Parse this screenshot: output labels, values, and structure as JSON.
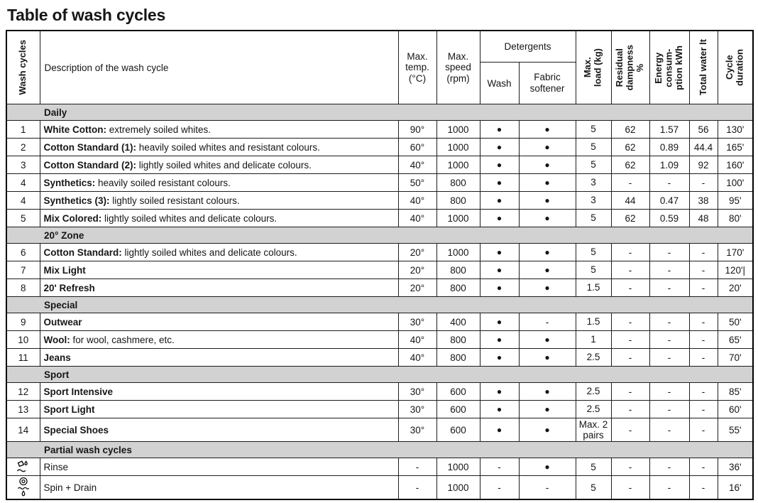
{
  "title": "Table of wash cycles",
  "table": {
    "headers": {
      "wash_cycles": "Wash cycles",
      "description": "Description of the wash cycle",
      "max_temp": "Max.\ntemp.\n(°C)",
      "max_speed": "Max.\nspeed\n(rpm)",
      "detergents": "Detergents",
      "wash": "Wash",
      "fabric_softener": "Fabric\nsoftener",
      "max_load": "Max.\nload (kg)",
      "residual_dampness": "Residual\ndampness\n%",
      "energy": "Energy\nconsum-\nption kWh",
      "total_water": "Total water lt",
      "cycle_duration": "Cycle\nduration"
    },
    "sections": [
      {
        "label": "Daily",
        "rows": [
          {
            "num": "1",
            "name": "White Cotton:",
            "desc": " extremely soiled whites.",
            "temp": "90°",
            "speed": "1000",
            "wash": "●",
            "softener": "●",
            "load": "5",
            "dampness": "62",
            "energy": "1.57",
            "water": "56",
            "duration": "130'"
          },
          {
            "num": "2",
            "name": "Cotton Standard (1):",
            "desc": " heavily soiled whites and resistant colours.",
            "temp": "60°",
            "speed": "1000",
            "wash": "●",
            "softener": "●",
            "load": "5",
            "dampness": "62",
            "energy": "0.89",
            "water": "44.4",
            "duration": "165'"
          },
          {
            "num": "3",
            "name": "Cotton Standard (2):",
            "desc": " lightly soiled whites and delicate colours.",
            "temp": "40°",
            "speed": "1000",
            "wash": "●",
            "softener": "●",
            "load": "5",
            "dampness": "62",
            "energy": "1.09",
            "water": "92",
            "duration": "160'"
          },
          {
            "num": "4",
            "name": "Synthetics:",
            "desc": " heavily soiled resistant colours.",
            "temp": "50°",
            "speed": "800",
            "wash": "●",
            "softener": "●",
            "load": "3",
            "dampness": "-",
            "energy": "-",
            "water": "-",
            "duration": "100'"
          },
          {
            "num": "4",
            "name": "Synthetics (3):",
            "desc": " lightly soiled resistant colours.",
            "temp": "40°",
            "speed": "800",
            "wash": "●",
            "softener": "●",
            "load": "3",
            "dampness": "44",
            "energy": "0.47",
            "water": "38",
            "duration": "95'"
          },
          {
            "num": "5",
            "name": "Mix Colored:",
            "desc": " lightly soiled whites and delicate colours.",
            "temp": "40°",
            "speed": "1000",
            "wash": "●",
            "softener": "●",
            "load": "5",
            "dampness": "62",
            "energy": "0.59",
            "water": "48",
            "duration": "80'"
          }
        ]
      },
      {
        "label": "20° Zone",
        "rows": [
          {
            "num": "6",
            "name": "Cotton Standard:",
            "desc": " lightly soiled whites and delicate colours.",
            "temp": "20°",
            "speed": "1000",
            "wash": "●",
            "softener": "●",
            "load": "5",
            "dampness": "-",
            "energy": "-",
            "water": "-",
            "duration": "170'"
          },
          {
            "num": "7",
            "name": "Mix Light",
            "desc": "",
            "temp": "20°",
            "speed": "800",
            "wash": "●",
            "softener": "●",
            "load": "5",
            "dampness": "-",
            "energy": "-",
            "water": "-",
            "duration": "120'|"
          },
          {
            "num": "8",
            "name": "20' Refresh",
            "desc": "",
            "temp": "20°",
            "speed": "800",
            "wash": "●",
            "softener": "●",
            "load": "1.5",
            "dampness": "-",
            "energy": "-",
            "water": "-",
            "duration": "20'"
          }
        ]
      },
      {
        "label": "Special",
        "rows": [
          {
            "num": "9",
            "name": "Outwear",
            "desc": "",
            "temp": "30°",
            "speed": "400",
            "wash": "●",
            "softener": "-",
            "load": "1.5",
            "dampness": "-",
            "energy": "-",
            "water": "-",
            "duration": "50'"
          },
          {
            "num": "10",
            "name": "Wool:",
            "desc": " for wool, cashmere, etc.",
            "temp": "40°",
            "speed": "800",
            "wash": "●",
            "softener": "●",
            "load": "1",
            "dampness": "-",
            "energy": "-",
            "water": "-",
            "duration": "65'"
          },
          {
            "num": "11",
            "name": "Jeans",
            "desc": "",
            "temp": "40°",
            "speed": "800",
            "wash": "●",
            "softener": "●",
            "load": "2.5",
            "dampness": "-",
            "energy": "-",
            "water": "-",
            "duration": "70'"
          }
        ]
      },
      {
        "label": "Sport",
        "rows": [
          {
            "num": "12",
            "name": "Sport Intensive",
            "desc": "",
            "temp": "30°",
            "speed": "600",
            "wash": "●",
            "softener": "●",
            "load": "2.5",
            "dampness": "-",
            "energy": "-",
            "water": "-",
            "duration": "85'"
          },
          {
            "num": "13",
            "name": "Sport Light",
            "desc": "",
            "temp": "30°",
            "speed": "600",
            "wash": "●",
            "softener": "●",
            "load": "2.5",
            "dampness": "-",
            "energy": "-",
            "water": "-",
            "duration": "60'"
          },
          {
            "num": "14",
            "name": "Special Shoes",
            "desc": "",
            "temp": "30°",
            "speed": "600",
            "wash": "●",
            "softener": "●",
            "load": "Max. 2\npairs",
            "dampness": "-",
            "energy": "-",
            "water": "-",
            "duration": "55'"
          }
        ]
      },
      {
        "label": "Partial wash cycles",
        "rows": [
          {
            "icon": "rinse-icon",
            "name": "Rinse",
            "desc": "",
            "temp": "-",
            "speed": "1000",
            "wash": "-",
            "softener": "●",
            "load": "5",
            "dampness": "-",
            "energy": "-",
            "water": "-",
            "duration": "36'"
          },
          {
            "icon": "spin-drain-icon",
            "name": "Spin + Drain",
            "desc": "",
            "temp": "-",
            "speed": "1000",
            "wash": "-",
            "softener": "-",
            "load": "5",
            "dampness": "-",
            "energy": "-",
            "water": "-",
            "duration": "16'"
          }
        ]
      }
    ]
  },
  "colors": {
    "section_band": "#d2d2d2",
    "border": "#1c1c1c",
    "text": "#161616"
  }
}
